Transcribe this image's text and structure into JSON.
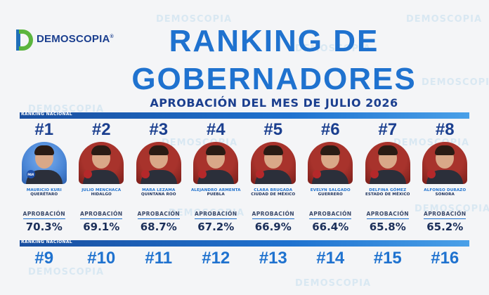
{
  "brand": {
    "logo_text": "DEMOSCOPIA",
    "registered": "®",
    "watermark": "DEMOSCOPIA",
    "colors": {
      "blue": "#1f72cf",
      "navy": "#1b3f8f",
      "green": "#5bb53e"
    }
  },
  "header": {
    "title_line1": "RANKING DE",
    "title_line2": "GOBERNADORES",
    "subtitle": "APROBACIÓN DEL MES DE JULIO 2026"
  },
  "bands": {
    "top_label": "RANKING NACIONAL",
    "bottom_label": "RANKING NACIONAL"
  },
  "approval_label": "APROBACIÓN",
  "governors": [
    {
      "rank": "#1",
      "name": "MAURICIO KURI",
      "state": "QUERÉTARO",
      "approval": "70.3%",
      "photo_bg": "#4a86d6",
      "badge": "PAN",
      "badge_color": "#1f4fa8"
    },
    {
      "rank": "#2",
      "name": "JULIO MENCHACA",
      "state": "HIDALGO",
      "approval": "69.1%",
      "photo_bg": "#a8332c",
      "badge": "",
      "badge_color": "#b5282a"
    },
    {
      "rank": "#3",
      "name": "MARA LEZAMA",
      "state": "QUINTANA ROO",
      "approval": "68.7%",
      "photo_bg": "#a8332c",
      "badge": "",
      "badge_color": "#b5282a"
    },
    {
      "rank": "#4",
      "name": "ALEJANDRO ARMENTA",
      "state": "PUEBLA",
      "approval": "67.2%",
      "photo_bg": "#a8332c",
      "badge": "",
      "badge_color": "#b5282a"
    },
    {
      "rank": "#5",
      "name": "CLARA BRUGADA",
      "state": "CIUDAD DE MÉXICO",
      "approval": "66.9%",
      "photo_bg": "#a8332c",
      "badge": "",
      "badge_color": "#b5282a"
    },
    {
      "rank": "#6",
      "name": "EVELYN SALGADO",
      "state": "GUERRERO",
      "approval": "66.4%",
      "photo_bg": "#a8332c",
      "badge": "",
      "badge_color": "#b5282a"
    },
    {
      "rank": "#7",
      "name": "DELFINA GÓMEZ",
      "state": "ESTADO DE MÉXICO",
      "approval": "65.8%",
      "photo_bg": "#a8332c",
      "badge": "",
      "badge_color": "#b5282a"
    },
    {
      "rank": "#8",
      "name": "ALFONSO DURAZO",
      "state": "SONORA",
      "approval": "65.2%",
      "photo_bg": "#a8332c",
      "badge": "",
      "badge_color": "#b5282a"
    }
  ],
  "next_ranks": [
    "#9",
    "#10",
    "#11",
    "#12",
    "#13",
    "#14",
    "#15",
    "#16"
  ]
}
